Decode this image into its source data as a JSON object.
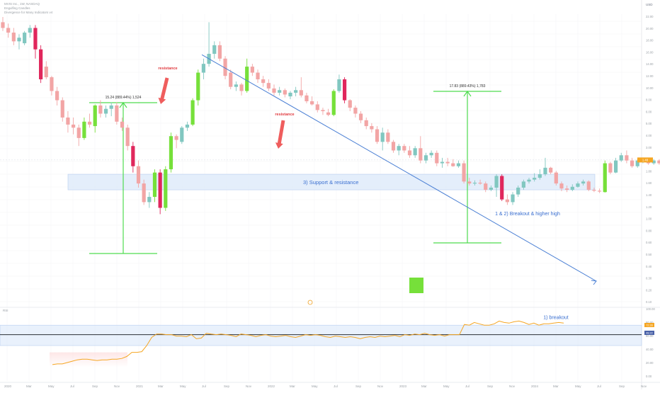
{
  "header": {
    "symbol_line": "MVIS Inc., 1W, NASDAQ",
    "indicator_1": "Engulfing Candles",
    "indicator_2": "Divergence for Many Indicators v4"
  },
  "price_axis": {
    "currency": "USD",
    "ticks": [
      "22.00",
      "20.00",
      "18.00",
      "16.00",
      "14.00",
      "12.00",
      "10.00",
      "8.00",
      "6.00",
      "5.00",
      "4.00",
      "3.00",
      "2.00",
      "1.80",
      "1.60",
      "1.40",
      "1.20",
      "1.00",
      "0.80",
      "0.60",
      "0.50",
      "0.40",
      "0.30",
      "0.20",
      "0.10"
    ]
  },
  "rsi_axis": {
    "ticks": [
      "100.00",
      "80.00",
      "60.00",
      "40.00",
      "20.00",
      "0.00"
    ]
  },
  "price_tag": "1.48",
  "rsi_tags": [
    "72.28",
    "48.22"
  ],
  "time_axis": {
    "labels": [
      "2020",
      "Mar",
      "May",
      "Jul",
      "Sep",
      "Nov",
      "2021",
      "Mar",
      "May",
      "Jul",
      "Sep",
      "Nov",
      "2022",
      "Mar",
      "May",
      "Jul",
      "Sep",
      "Nov",
      "2023",
      "Mar",
      "May",
      "Jul",
      "Sep",
      "Nov",
      "2024",
      "Mar",
      "May",
      "Jul",
      "Sep",
      "Nov"
    ]
  },
  "pane_label": "RSI",
  "annotations": {
    "resistance_1": "resistance",
    "resistance_2": "resistance",
    "measure_1": "15.24 (889.44%) 1,524",
    "measure_2": "17.83 (889.43%) 1,783",
    "support_resistance": "3) Support & resistance",
    "breakout_higher_high": "1 & 2) Breakout & higher high",
    "rsi_breakout": "1) breakout"
  },
  "colors": {
    "bull": "#81c7c0",
    "bear": "#f2a5a5",
    "bull_engulf": "#76e03a",
    "bear_engulf": "#e0275c",
    "fib_green": "#4fdc4f",
    "trendline": "#4a7fd4",
    "zone_fill": "#dbe8fa",
    "rsi_line": "#f5a623",
    "arrow_red": "#ef5d5d",
    "label_blue": "#3a6fd0",
    "label_red": "#e0393e"
  },
  "chart_data": {
    "type": "candlestick",
    "ylim": [
      0.2,
      24
    ],
    "log_scale": true,
    "series": [
      {
        "date": "2020-01",
        "open": 22.0,
        "high": 24.0,
        "low": 19.0,
        "close": 20.0
      },
      {
        "date": "2020-01",
        "open": 20.0,
        "high": 21.5,
        "low": 17.0,
        "close": 18.5
      },
      {
        "date": "2020-02",
        "open": 18.5,
        "high": 20.0,
        "low": 15.0,
        "close": 16.0
      },
      {
        "date": "2020-02",
        "open": 16.0,
        "high": 18.0,
        "low": 14.0,
        "close": 17.0
      },
      {
        "date": "2020-02",
        "open": 15.5,
        "high": 19.0,
        "low": 15.0,
        "close": 18.5
      },
      {
        "date": "2020-03",
        "open": 18.5,
        "high": 21.0,
        "low": 17.0,
        "close": 20.0
      },
      {
        "date": "2020-03",
        "open": 20.0,
        "high": 21.0,
        "low": 12.0,
        "close": 14.0
      },
      {
        "date": "2020-03",
        "open": 14.0,
        "high": 15.0,
        "low": 8.0,
        "close": 8.5
      },
      {
        "date": "2020-04",
        "open": 10.5,
        "high": 11.5,
        "low": 8.5,
        "close": 8.8
      },
      {
        "date": "2020-04",
        "open": 8.8,
        "high": 9.0,
        "low": 6.5,
        "close": 7.0
      },
      {
        "date": "2020-04",
        "open": 7.0,
        "high": 7.5,
        "low": 5.5,
        "close": 6.0
      },
      {
        "date": "2020-05",
        "open": 6.0,
        "high": 6.3,
        "low": 4.2,
        "close": 4.5
      },
      {
        "date": "2020-05",
        "open": 4.5,
        "high": 5.0,
        "low": 3.5,
        "close": 4.0
      },
      {
        "date": "2020-05",
        "open": 4.0,
        "high": 4.5,
        "low": 3.4,
        "close": 3.8
      },
      {
        "date": "2020-06",
        "open": 3.8,
        "high": 4.0,
        "low": 2.8,
        "close": 3.2
      },
      {
        "date": "2020-06",
        "open": 3.2,
        "high": 4.5,
        "low": 3.1,
        "close": 4.2
      },
      {
        "date": "2020-06",
        "open": 4.2,
        "high": 4.8,
        "low": 3.8,
        "close": 4.0
      },
      {
        "date": "2020-07",
        "open": 3.9,
        "high": 5.6,
        "low": 3.5,
        "close": 5.5
      },
      {
        "date": "2020-07",
        "open": 5.5,
        "high": 6.0,
        "low": 4.5,
        "close": 4.8
      },
      {
        "date": "2020-07",
        "open": 4.8,
        "high": 5.5,
        "low": 4.5,
        "close": 5.2
      },
      {
        "date": "2020-08",
        "open": 5.2,
        "high": 5.8,
        "low": 4.6,
        "close": 5.5
      },
      {
        "date": "2020-08",
        "open": 5.5,
        "high": 5.8,
        "low": 4.0,
        "close": 4.2
      },
      {
        "date": "2020-08",
        "open": 4.2,
        "high": 4.5,
        "low": 3.6,
        "close": 3.8
      },
      {
        "date": "2020-09",
        "open": 3.8,
        "high": 4.0,
        "low": 2.6,
        "close": 2.8
      },
      {
        "date": "2020-09",
        "open": 2.8,
        "high": 3.0,
        "low": 1.8,
        "close": 2.0
      },
      {
        "date": "2020-09",
        "open": 2.0,
        "high": 2.2,
        "low": 1.4,
        "close": 1.5
      },
      {
        "date": "2020-10",
        "open": 1.5,
        "high": 1.6,
        "low": 1.05,
        "close": 1.1
      },
      {
        "date": "2020-10",
        "open": 1.1,
        "high": 1.3,
        "low": 1.0,
        "close": 1.2
      },
      {
        "date": "2020-10",
        "open": 1.2,
        "high": 1.9,
        "low": 1.1,
        "close": 1.8
      },
      {
        "date": "2020-11",
        "open": 1.8,
        "high": 1.9,
        "low": 0.9,
        "close": 1.0
      },
      {
        "date": "2020-11",
        "open": 1.0,
        "high": 2.0,
        "low": 0.95,
        "close": 1.9
      },
      {
        "date": "2020-11",
        "open": 1.9,
        "high": 3.5,
        "low": 1.8,
        "close": 3.3
      },
      {
        "date": "2020-12",
        "open": 3.3,
        "high": 3.4,
        "low": 2.7,
        "close": 3.1
      },
      {
        "date": "2020-12",
        "open": 3.0,
        "high": 3.9,
        "low": 2.9,
        "close": 3.8
      },
      {
        "date": "2020-12",
        "open": 3.8,
        "high": 4.2,
        "low": 3.6,
        "close": 4.0
      },
      {
        "date": "2021-01",
        "open": 4.0,
        "high": 6.2,
        "low": 3.9,
        "close": 6.0
      },
      {
        "date": "2021-01",
        "open": 6.0,
        "high": 10.0,
        "low": 5.5,
        "close": 9.5
      },
      {
        "date": "2021-01",
        "open": 9.5,
        "high": 12.0,
        "low": 8.5,
        "close": 11.0
      },
      {
        "date": "2021-02",
        "open": 11.0,
        "high": 22.0,
        "low": 10.5,
        "close": 13.0
      },
      {
        "date": "2021-02",
        "open": 13.0,
        "high": 16.0,
        "low": 12.0,
        "close": 15.0
      },
      {
        "date": "2021-02",
        "open": 15.0,
        "high": 16.0,
        "low": 11.5,
        "close": 12.0
      },
      {
        "date": "2021-03",
        "open": 12.0,
        "high": 12.5,
        "low": 8.5,
        "close": 9.0
      },
      {
        "date": "2021-03",
        "open": 9.5,
        "high": 10.0,
        "low": 7.2,
        "close": 7.5
      },
      {
        "date": "2021-03",
        "open": 7.5,
        "high": 8.2,
        "low": 7.0,
        "close": 7.8
      },
      {
        "date": "2021-04",
        "open": 7.8,
        "high": 8.0,
        "low": 6.5,
        "close": 7.0
      },
      {
        "date": "2021-04",
        "open": 7.0,
        "high": 12.0,
        "low": 6.8,
        "close": 10.5
      },
      {
        "date": "2021-04",
        "open": 10.5,
        "high": 11.0,
        "low": 9.0,
        "close": 9.5
      },
      {
        "date": "2021-05",
        "open": 9.5,
        "high": 10.0,
        "low": 8.0,
        "close": 8.5
      },
      {
        "date": "2021-05",
        "open": 8.5,
        "high": 9.0,
        "low": 7.5,
        "close": 8.0
      },
      {
        "date": "2021-05",
        "open": 8.0,
        "high": 8.5,
        "low": 7.0,
        "close": 7.3
      },
      {
        "date": "2021-06",
        "open": 7.3,
        "high": 7.8,
        "low": 6.5,
        "close": 6.8
      },
      {
        "date": "2021-06",
        "open": 6.8,
        "high": 7.5,
        "low": 6.5,
        "close": 7.1
      },
      {
        "date": "2021-06",
        "open": 7.1,
        "high": 7.3,
        "low": 6.3,
        "close": 6.6
      },
      {
        "date": "2021-07",
        "open": 6.4,
        "high": 7.0,
        "low": 6.1,
        "close": 6.8
      },
      {
        "date": "2021-07",
        "open": 6.8,
        "high": 7.5,
        "low": 6.4,
        "close": 7.1
      },
      {
        "date": "2021-07",
        "open": 7.1,
        "high": 8.8,
        "low": 6.3,
        "close": 6.5
      },
      {
        "date": "2021-08",
        "open": 6.5,
        "high": 6.8,
        "low": 5.7,
        "close": 5.9
      },
      {
        "date": "2021-08",
        "open": 5.9,
        "high": 6.4,
        "low": 5.5,
        "close": 5.6
      },
      {
        "date": "2021-08",
        "open": 5.6,
        "high": 5.9,
        "low": 4.9,
        "close": 5.1
      },
      {
        "date": "2021-09",
        "open": 5.1,
        "high": 5.3,
        "low": 4.7,
        "close": 5.0
      },
      {
        "date": "2021-09",
        "open": 4.9,
        "high": 5.2,
        "low": 4.6,
        "close": 4.7
      },
      {
        "date": "2021-09",
        "open": 4.7,
        "high": 7.2,
        "low": 4.6,
        "close": 7.0
      },
      {
        "date": "2021-10",
        "open": 7.0,
        "high": 9.2,
        "low": 6.8,
        "close": 8.5
      },
      {
        "date": "2021-10",
        "open": 8.5,
        "high": 8.8,
        "low": 5.7,
        "close": 6.0
      },
      {
        "date": "2021-10",
        "open": 6.0,
        "high": 6.1,
        "low": 5.0,
        "close": 5.3
      },
      {
        "date": "2021-11",
        "open": 5.3,
        "high": 5.5,
        "low": 4.5,
        "close": 4.8
      },
      {
        "date": "2021-11",
        "open": 4.8,
        "high": 5.0,
        "low": 4.1,
        "close": 4.3
      },
      {
        "date": "2021-11",
        "open": 4.3,
        "high": 4.5,
        "low": 3.7,
        "close": 3.9
      },
      {
        "date": "2021-12",
        "open": 3.9,
        "high": 4.1,
        "low": 3.5,
        "close": 3.7
      },
      {
        "date": "2021-12",
        "open": 3.7,
        "high": 3.9,
        "low": 2.9,
        "close": 3.0
      },
      {
        "date": "2022-01",
        "open": 3.0,
        "high": 3.8,
        "low": 2.6,
        "close": 3.5
      },
      {
        "date": "2022-01",
        "open": 3.5,
        "high": 3.7,
        "low": 2.9,
        "close": 3.0
      },
      {
        "date": "2022-01",
        "open": 3.0,
        "high": 3.1,
        "low": 2.5,
        "close": 2.6
      },
      {
        "date": "2022-02",
        "open": 2.6,
        "high": 2.9,
        "low": 2.4,
        "close": 2.8
      },
      {
        "date": "2022-02",
        "open": 2.8,
        "high": 2.9,
        "low": 2.5,
        "close": 2.6
      },
      {
        "date": "2022-03",
        "open": 2.6,
        "high": 2.8,
        "low": 2.3,
        "close": 2.4
      },
      {
        "date": "2022-03",
        "open": 2.4,
        "high": 2.8,
        "low": 2.3,
        "close": 2.7
      },
      {
        "date": "2022-03",
        "open": 2.7,
        "high": 3.3,
        "low": 2.1,
        "close": 2.2
      },
      {
        "date": "2022-04",
        "open": 2.2,
        "high": 2.5,
        "low": 2.1,
        "close": 2.4
      },
      {
        "date": "2022-04",
        "open": 2.4,
        "high": 2.6,
        "low": 2.3,
        "close": 2.5
      },
      {
        "date": "2022-04",
        "open": 2.5,
        "high": 2.6,
        "low": 2.0,
        "close": 2.1
      },
      {
        "date": "2022-05",
        "open": 2.1,
        "high": 2.3,
        "low": 1.95,
        "close": 2.15
      },
      {
        "date": "2022-05",
        "open": 2.15,
        "high": 2.3,
        "low": 2.0,
        "close": 2.1
      },
      {
        "date": "2022-05",
        "open": 2.1,
        "high": 2.25,
        "low": 1.98,
        "close": 2.0
      },
      {
        "date": "2022-06",
        "open": 2.0,
        "high": 2.2,
        "low": 1.95,
        "close": 2.1
      },
      {
        "date": "2022-06",
        "open": 2.1,
        "high": 2.2,
        "low": 1.5,
        "close": 1.55
      },
      {
        "date": "2022-06",
        "open": 1.55,
        "high": 1.65,
        "low": 1.45,
        "close": 1.5
      },
      {
        "date": "2022-07",
        "open": 1.5,
        "high": 1.58,
        "low": 1.45,
        "close": 1.52
      },
      {
        "date": "2022-07",
        "open": 1.52,
        "high": 1.6,
        "low": 1.47,
        "close": 1.5
      },
      {
        "date": "2022-07",
        "open": 1.5,
        "high": 1.55,
        "low": 1.3,
        "close": 1.35
      },
      {
        "date": "2022-08",
        "open": 1.35,
        "high": 1.45,
        "low": 1.32,
        "close": 1.4
      },
      {
        "date": "2022-08",
        "open": 1.4,
        "high": 1.75,
        "low": 1.2,
        "close": 1.7
      },
      {
        "date": "2022-08",
        "open": 1.7,
        "high": 1.75,
        "low": 1.12,
        "close": 1.15
      },
      {
        "date": "2022-09",
        "open": 1.15,
        "high": 1.25,
        "low": 1.05,
        "close": 1.1
      },
      {
        "date": "2022-09",
        "open": 1.1,
        "high": 1.3,
        "low": 1.05,
        "close": 1.25
      },
      {
        "date": "2022-09",
        "open": 1.25,
        "high": 1.45,
        "low": 1.2,
        "close": 1.4
      },
      {
        "date": "2022-10",
        "open": 1.4,
        "high": 1.6,
        "low": 1.35,
        "close": 1.55
      },
      {
        "date": "2022-10",
        "open": 1.55,
        "high": 1.65,
        "low": 1.5,
        "close": 1.6
      },
      {
        "date": "2022-10",
        "open": 1.6,
        "high": 1.78,
        "low": 1.55,
        "close": 1.65
      },
      {
        "date": "2022-11",
        "open": 1.65,
        "high": 1.9,
        "low": 1.6,
        "close": 1.75
      },
      {
        "date": "2022-11",
        "open": 1.75,
        "high": 2.3,
        "low": 1.7,
        "close": 1.95
      },
      {
        "date": "2022-11",
        "open": 1.95,
        "high": 1.98,
        "low": 1.75,
        "close": 1.8
      },
      {
        "date": "2022-12",
        "open": 1.8,
        "high": 1.85,
        "low": 1.45,
        "close": 1.5
      },
      {
        "date": "2022-12",
        "open": 1.5,
        "high": 1.55,
        "low": 1.32,
        "close": 1.38
      },
      {
        "date": "2023-01",
        "open": 1.38,
        "high": 1.45,
        "low": 1.3,
        "close": 1.35
      },
      {
        "date": "2023-01",
        "open": 1.35,
        "high": 1.48,
        "low": 1.32,
        "close": 1.42
      },
      {
        "date": "2023-01",
        "open": 1.42,
        "high": 1.55,
        "low": 1.4,
        "close": 1.5
      },
      {
        "date": "2023-02",
        "open": 1.5,
        "high": 1.6,
        "low": 1.45,
        "close": 1.55
      },
      {
        "date": "2023-02",
        "open": 1.55,
        "high": 1.58,
        "low": 1.32,
        "close": 1.35
      },
      {
        "date": "2023-02",
        "open": 1.35,
        "high": 1.4,
        "low": 1.3,
        "close": 1.33
      },
      {
        "date": "2023-03",
        "open": 1.33,
        "high": 1.38,
        "low": 1.28,
        "close": 1.32
      },
      {
        "date": "2023-03",
        "open": 1.3,
        "high": 2.2,
        "low": 1.29,
        "close": 2.1
      },
      {
        "date": "2023-04",
        "open": 2.1,
        "high": 2.15,
        "low": 1.75,
        "close": 1.8
      },
      {
        "date": "2023-04",
        "open": 1.8,
        "high": 2.3,
        "low": 1.78,
        "close": 2.2
      },
      {
        "date": "2023-04",
        "open": 2.2,
        "high": 2.5,
        "low": 2.15,
        "close": 2.4
      },
      {
        "date": "2023-05",
        "open": 2.4,
        "high": 2.6,
        "low": 2.1,
        "close": 2.2
      },
      {
        "date": "2023-05",
        "open": 2.2,
        "high": 2.3,
        "low": 1.95,
        "close": 2.0
      },
      {
        "date": "2023-05",
        "open": 2.0,
        "high": 2.25,
        "low": 1.95,
        "close": 2.2
      },
      {
        "date": "2023-06",
        "open": 2.2,
        "high": 2.3,
        "low": 2.1,
        "close": 2.25
      },
      {
        "date": "2023-06",
        "open": 2.25,
        "high": 2.3,
        "low": 2.05,
        "close": 2.1
      },
      {
        "date": "2023-06",
        "open": 2.1,
        "high": 2.25,
        "low": 2.05,
        "close": 2.2
      },
      {
        "date": "2023-07",
        "open": 2.2,
        "high": 2.25,
        "low": 2.05,
        "close": 2.1
      },
      {
        "date": "2023-07",
        "open": 2.1,
        "high": 2.25,
        "low": 2.05,
        "close": 2.2
      },
      {
        "date": "2023-07",
        "open": 2.2,
        "high": 2.25,
        "low": 2.15,
        "close": 2.22
      }
    ]
  },
  "rsi_data": {
    "ylim": [
      0,
      100
    ],
    "band": [
      30,
      70
    ],
    "values": [
      22,
      23,
      23,
      25,
      27,
      29,
      30,
      30,
      29,
      28,
      29,
      29,
      30,
      30,
      31,
      34,
      40,
      40,
      41,
      50,
      62,
      67,
      67,
      66,
      66,
      64,
      64,
      63,
      66,
      60,
      61,
      68,
      67,
      66,
      67,
      66,
      65,
      63,
      67,
      66,
      65,
      63,
      65,
      66,
      64,
      63,
      64,
      65,
      63,
      62,
      64,
      66,
      65,
      66,
      65,
      63,
      62,
      64,
      63,
      62,
      63,
      62,
      60,
      62,
      63,
      62,
      64,
      63,
      64,
      65,
      63,
      66,
      65,
      67,
      66,
      68,
      66,
      65,
      66,
      64,
      66,
      66,
      66,
      81,
      80,
      84,
      82,
      80,
      80,
      82,
      86,
      84,
      83,
      85,
      86,
      84,
      81,
      83,
      80,
      82,
      82,
      83,
      84,
      83
    ]
  }
}
